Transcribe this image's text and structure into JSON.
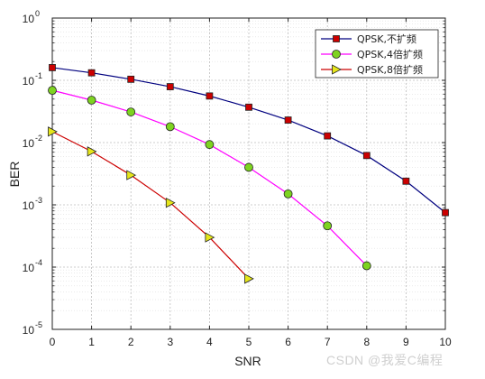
{
  "chart_data": {
    "type": "line",
    "title": "",
    "xlabel": "SNR",
    "ylabel": "BER",
    "xlim": [
      0,
      10
    ],
    "ylim": [
      1e-05,
      1
    ],
    "yscale": "log",
    "grid": true,
    "minor_grid": true,
    "legend_position": "top-right",
    "x_ticks": [
      "0",
      "1",
      "2",
      "3",
      "4",
      "5",
      "6",
      "7",
      "8",
      "9",
      "10"
    ],
    "y_ticks": [
      {
        "base": "10",
        "exp": "0"
      },
      {
        "base": "10",
        "exp": "-1"
      },
      {
        "base": "10",
        "exp": "-2"
      },
      {
        "base": "10",
        "exp": "-3"
      },
      {
        "base": "10",
        "exp": "-4"
      },
      {
        "base": "10",
        "exp": "-5"
      }
    ],
    "series": [
      {
        "name": "QPSK,不扩频",
        "color": "#00007f",
        "marker": "square",
        "marker_color": "#cc0000",
        "x": [
          0,
          1,
          2,
          3,
          4,
          5,
          6,
          7,
          8,
          9,
          10
        ],
        "y": [
          0.16,
          0.132,
          0.104,
          0.079,
          0.056,
          0.037,
          0.023,
          0.0128,
          0.0062,
          0.0024,
          0.00075
        ]
      },
      {
        "name": "QPSK,4倍扩频",
        "color": "#ff00ff",
        "marker": "circle",
        "marker_color": "#7ed321",
        "x": [
          0,
          1,
          2,
          3,
          4,
          5,
          6,
          7,
          8
        ],
        "y": [
          0.069,
          0.048,
          0.031,
          0.018,
          0.0093,
          0.004,
          0.0015,
          0.00046,
          0.000105
        ]
      },
      {
        "name": "QPSK,8倍扩频",
        "color": "#cc0000",
        "marker": "triangle-right",
        "marker_color": "#e6e61a",
        "x": [
          0,
          1,
          2,
          3,
          4,
          5
        ],
        "y": [
          0.015,
          0.0072,
          0.003,
          0.00108,
          0.0003,
          6.5e-05
        ]
      }
    ]
  },
  "watermark": "CSDN @我爱C编程"
}
